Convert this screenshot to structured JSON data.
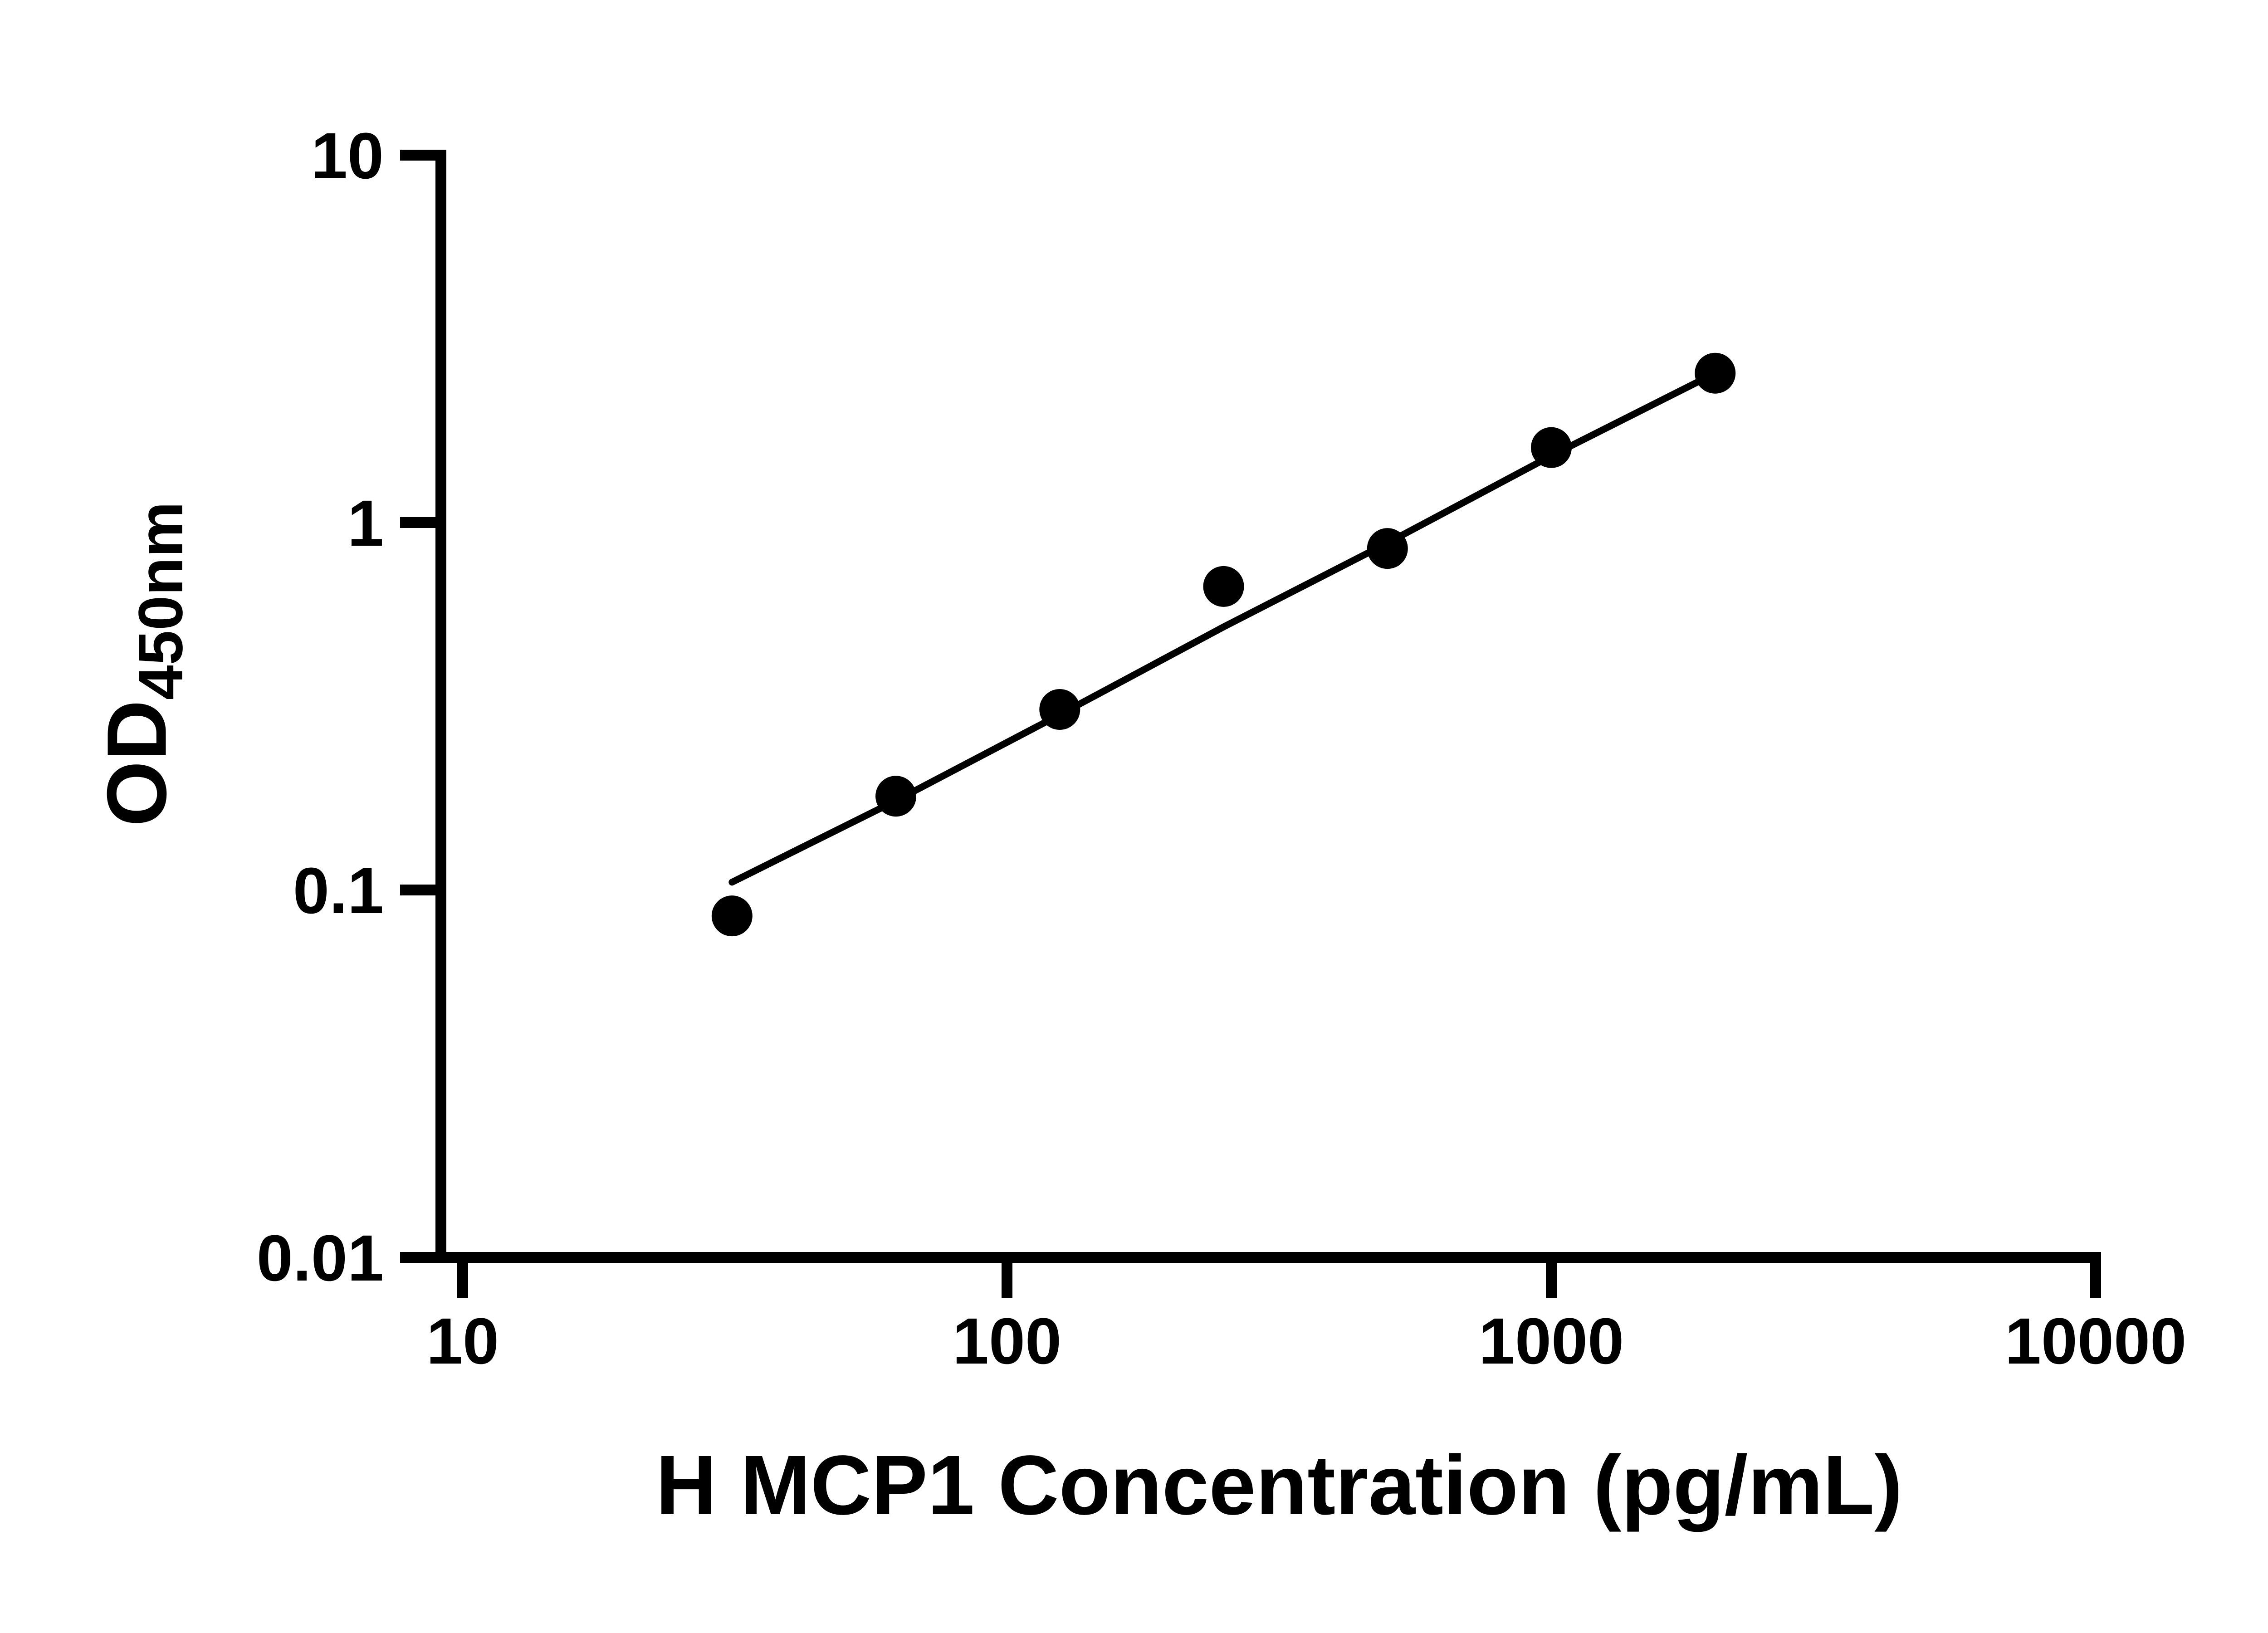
{
  "page": {
    "background_color": "#ffffff",
    "foreground_color": "#000000"
  },
  "chart_data": {
    "type": "scatter",
    "title": "",
    "xlabel": "H MCP1 Concentration (pg/mL)",
    "ylabel_main": "OD",
    "ylabel_sub": "450nm",
    "x_scale": "log",
    "y_scale": "log",
    "xlim": [
      10,
      10000
    ],
    "ylim": [
      0.01,
      10
    ],
    "x_ticks": [
      10,
      100,
      1000,
      10000
    ],
    "x_tick_labels": [
      "10",
      "100",
      "1000",
      "10000"
    ],
    "y_ticks": [
      0.01,
      0.1,
      1,
      10
    ],
    "y_tick_labels": [
      "0.01",
      "0.1",
      "1",
      "10"
    ],
    "grid": false,
    "legend": null,
    "series": [
      {
        "name": "fit-curve",
        "type": "line",
        "color": "#000000",
        "x": [
          31.25,
          62.5,
          125,
          250,
          500,
          1000,
          2000
        ],
        "y": [
          0.105,
          0.175,
          0.3,
          0.52,
          0.88,
          1.52,
          2.55
        ]
      },
      {
        "name": "standard-points",
        "type": "scatter",
        "marker": "circle-filled",
        "color": "#000000",
        "x": [
          31.25,
          62.5,
          125,
          250,
          500,
          1000,
          2000
        ],
        "y": [
          0.085,
          0.18,
          0.31,
          0.67,
          0.85,
          1.6,
          2.55
        ]
      }
    ],
    "styles": {
      "axis_color": "#000000",
      "axis_width": 8,
      "tick_length": 26,
      "marker_radius": 15,
      "line_width": 5
    }
  }
}
